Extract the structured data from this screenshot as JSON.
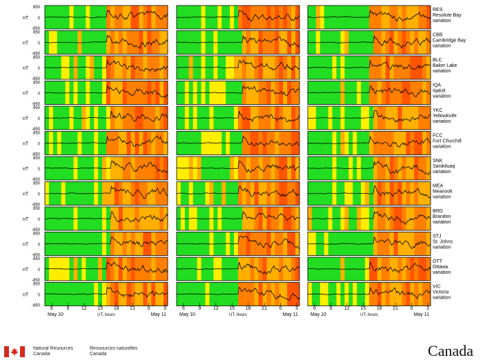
{
  "chart_data": {
    "type": "heatmap",
    "description_units": "nT",
    "y_tick_labels": [
      "850",
      "0",
      "-850"
    ],
    "y_label": "nT",
    "ylim": [
      -850,
      850
    ],
    "x_axis_label": "UT, hours",
    "x_tick_labels": [
      "6",
      "9",
      "12",
      "15",
      "18",
      "21",
      "0",
      "3"
    ],
    "date_labels": [
      "May 10",
      "May 11"
    ],
    "level_colors": {
      "quiet": "#22dd22",
      "unsettled": "#ffee00",
      "active": "#ffb000",
      "storm": "#ff8000",
      "major": "#ff5500"
    },
    "stations": [
      {
        "code": "RES",
        "name": "Resolute Bay",
        "suffix": "variation"
      },
      {
        "code": "CBB",
        "name": "Cambridge Bay",
        "suffix": "variation"
      },
      {
        "code": "BLC",
        "name": "Baker Lake",
        "suffix": "variation"
      },
      {
        "code": "IQA",
        "name": "Iqaluit",
        "suffix": "variation"
      },
      {
        "code": "YKC",
        "name": "Yellowknife",
        "suffix": "variation"
      },
      {
        "code": "FCC",
        "name": "Fort Churchill",
        "suffix": "variation"
      },
      {
        "code": "SNK",
        "name": "Sanikiluaq",
        "suffix": "variation"
      },
      {
        "code": "MEA",
        "name": "Meanook",
        "suffix": "variation"
      },
      {
        "code": "BRD",
        "name": "Brandon",
        "suffix": "variation"
      },
      {
        "code": "STJ",
        "name": "St. Johns",
        "suffix": "variation"
      },
      {
        "code": "OTT",
        "name": "Ottawa",
        "suffix": "variation"
      },
      {
        "code": "VIC",
        "name": "Victoria",
        "suffix": "variation"
      }
    ],
    "columns": 3
  },
  "footer": {
    "org_en_1": "Natural Resources",
    "org_en_2": "Canada",
    "org_fr_1": "Ressources naturelles",
    "org_fr_2": "Canada",
    "wordmark": "Canada"
  }
}
